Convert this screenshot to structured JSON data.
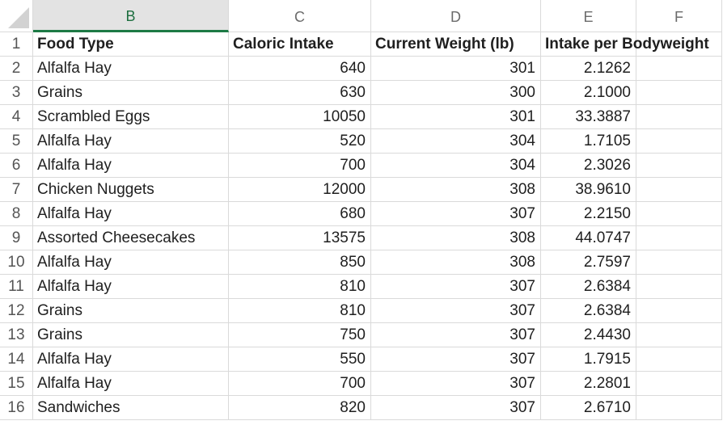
{
  "columns": [
    "B",
    "C",
    "D",
    "E",
    "F"
  ],
  "selected_column": "B",
  "header_row": {
    "row_number": "1",
    "cells": [
      "Food Type",
      "Caloric Intake",
      "Current Weight (lb)",
      "Intake per Bodyweight",
      ""
    ]
  },
  "rows": [
    {
      "n": "2",
      "food": "Alfalfa Hay",
      "calories": "640",
      "weight": "301",
      "intake": "2.1262"
    },
    {
      "n": "3",
      "food": "Grains",
      "calories": "630",
      "weight": "300",
      "intake": "2.1000"
    },
    {
      "n": "4",
      "food": "Scrambled Eggs",
      "calories": "10050",
      "weight": "301",
      "intake": "33.3887"
    },
    {
      "n": "5",
      "food": "Alfalfa Hay",
      "calories": "520",
      "weight": "304",
      "intake": "1.7105"
    },
    {
      "n": "6",
      "food": "Alfalfa Hay",
      "calories": "700",
      "weight": "304",
      "intake": "2.3026"
    },
    {
      "n": "7",
      "food": "Chicken Nuggets",
      "calories": "12000",
      "weight": "308",
      "intake": "38.9610"
    },
    {
      "n": "8",
      "food": "Alfalfa Hay",
      "calories": "680",
      "weight": "307",
      "intake": "2.2150"
    },
    {
      "n": "9",
      "food": "Assorted Cheesecakes",
      "calories": "13575",
      "weight": "308",
      "intake": "44.0747"
    },
    {
      "n": "10",
      "food": "Alfalfa Hay",
      "calories": "850",
      "weight": "308",
      "intake": "2.7597"
    },
    {
      "n": "11",
      "food": "Alfalfa Hay",
      "calories": "810",
      "weight": "307",
      "intake": "2.6384"
    },
    {
      "n": "12",
      "food": "Grains",
      "calories": "810",
      "weight": "307",
      "intake": "2.6384"
    },
    {
      "n": "13",
      "food": "Grains",
      "calories": "750",
      "weight": "307",
      "intake": "2.4430"
    },
    {
      "n": "14",
      "food": "Alfalfa Hay",
      "calories": "550",
      "weight": "307",
      "intake": "1.7915"
    },
    {
      "n": "15",
      "food": "Alfalfa Hay",
      "calories": "700",
      "weight": "307",
      "intake": "2.2801"
    },
    {
      "n": "16",
      "food": "Sandwiches",
      "calories": "820",
      "weight": "307",
      "intake": "2.6710"
    }
  ]
}
